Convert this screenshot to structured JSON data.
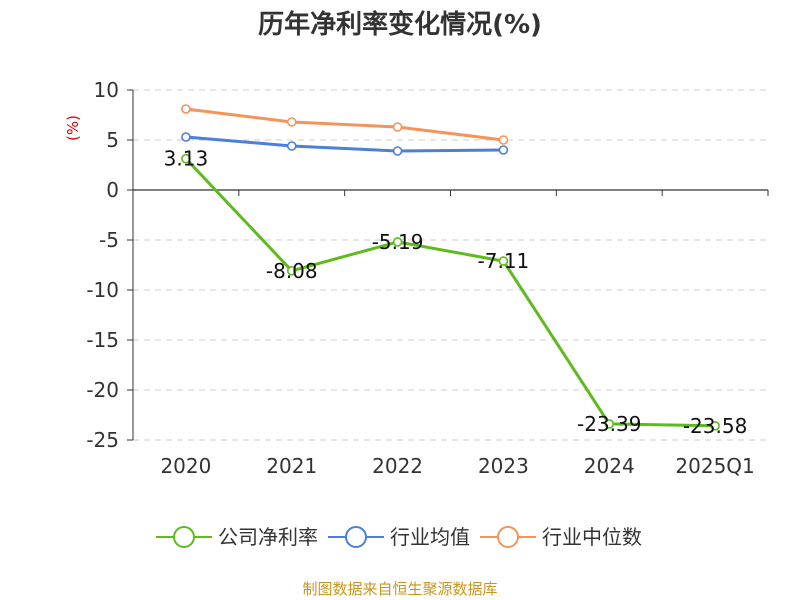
{
  "chart_data": {
    "type": "line",
    "title": "历年净利率变化情况(%)",
    "ylabel": "(%)",
    "xlabel": "",
    "categories": [
      "2020",
      "2021",
      "2022",
      "2023",
      "2024",
      "2025Q1"
    ],
    "ylim": [
      -25,
      10
    ],
    "yticks": [
      10,
      5,
      0,
      -5,
      -10,
      -15,
      -20,
      -25
    ],
    "grid": true,
    "legend_position": "bottom",
    "series": [
      {
        "name": "公司净利率",
        "color": "#5dbb1e",
        "values": [
          3.13,
          -8.08,
          -5.19,
          -7.11,
          -23.39,
          -23.58
        ],
        "labels": [
          "3.13",
          "-8.08",
          "-5.19",
          "-7.11",
          "-23.39",
          "-23.58"
        ]
      },
      {
        "name": "行业均值",
        "color": "#4a7fdc",
        "values": [
          5.3,
          4.4,
          3.9,
          4.0,
          null,
          null
        ]
      },
      {
        "name": "行业中位数",
        "color": "#f5935a",
        "values": [
          8.1,
          6.8,
          6.3,
          5.0,
          null,
          null
        ]
      }
    ]
  },
  "source": "制图数据来自恒生聚源数据库"
}
